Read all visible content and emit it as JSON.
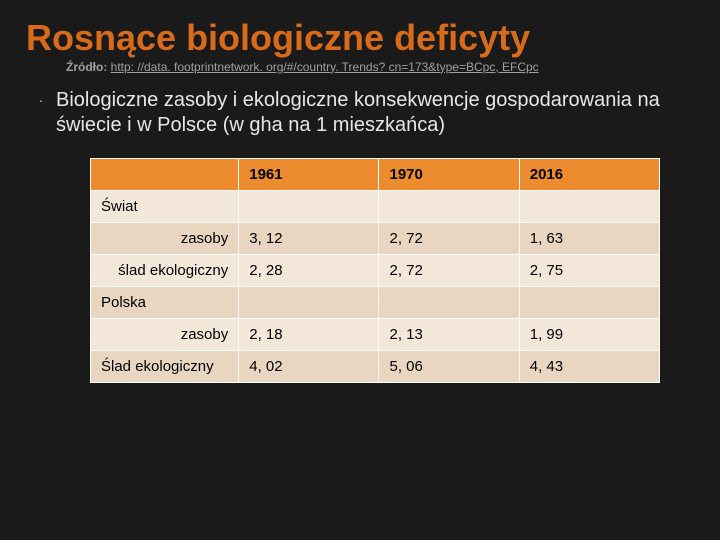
{
  "title": "Rosnące biologiczne deficyty",
  "source_label": "Źródło: ",
  "source_link": "http: //data. footprintnetwork. org/#/country. Trends? cn=173&type=BCpc, EFCpc",
  "body_text": "Biologiczne zasoby i ekologiczne konsekwencje gospodarowania na świecie i w Polsce (w gha na 1 mieszkańca)",
  "bullet_glyph": "·",
  "table": {
    "header": [
      "",
      "1961",
      "1970",
      "2016"
    ],
    "rows": [
      {
        "label": "Świat",
        "section": true,
        "align": "left",
        "values": [
          "",
          "",
          ""
        ]
      },
      {
        "label": "zasoby",
        "align": "right",
        "values": [
          "3, 12",
          "2, 72",
          "1, 63"
        ]
      },
      {
        "label": "ślad ekologiczny",
        "align": "right",
        "multi": true,
        "values": [
          "2, 28",
          "2, 72",
          "2, 75"
        ]
      },
      {
        "label": "Polska",
        "section": true,
        "align": "left",
        "values": [
          "",
          "",
          ""
        ]
      },
      {
        "label": "zasoby",
        "align": "right",
        "values": [
          "2, 18",
          "2, 13",
          "1, 99"
        ]
      },
      {
        "label": "Ślad ekologiczny",
        "align": "left",
        "multi": true,
        "values": [
          "4, 02",
          "5, 06",
          "4, 43"
        ]
      }
    ],
    "header_bg": "#ed8b2f",
    "row_odd_bg": "#f3e7da",
    "row_even_bg": "#e9d6c0",
    "border_color": "#ffffff",
    "font_size": 15
  },
  "colors": {
    "background": "#1a1a1a",
    "title": "#d86b1a",
    "body_text": "#e6e6e6",
    "source_text": "#a0a0a0"
  }
}
